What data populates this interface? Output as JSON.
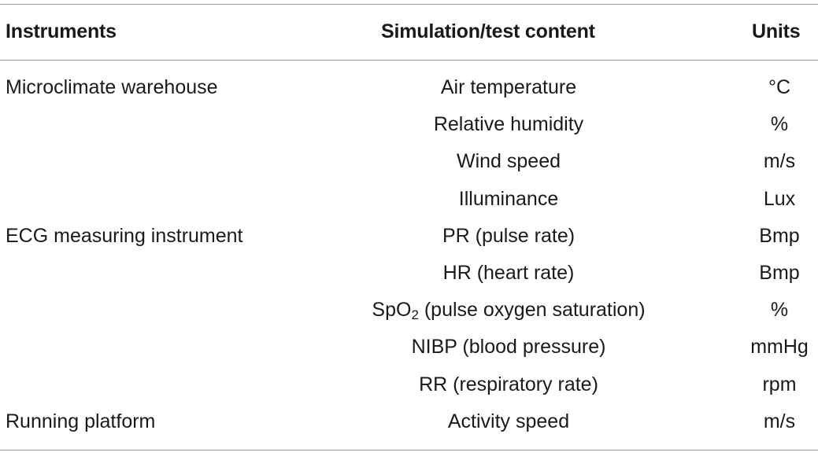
{
  "table": {
    "headers": {
      "instruments": "Instruments",
      "content": "Simulation/test content",
      "units": "Units"
    },
    "rows": [
      {
        "instrument": "Microclimate warehouse",
        "content": "Air temperature",
        "unit": "°C"
      },
      {
        "instrument": "",
        "content": "Relative humidity",
        "unit": "%"
      },
      {
        "instrument": "",
        "content": "Wind speed",
        "unit": "m/s"
      },
      {
        "instrument": "",
        "content": "Illuminance",
        "unit": "Lux"
      },
      {
        "instrument": "ECG measuring instrument",
        "content": "PR (pulse rate)",
        "unit": "Bmp"
      },
      {
        "instrument": "",
        "content": "HR (heart rate)",
        "unit": "Bmp"
      },
      {
        "instrument": "",
        "content_prefix": "SpO",
        "content_sub": "2",
        "content_suffix": " (pulse oxygen saturation)",
        "unit": "%"
      },
      {
        "instrument": "",
        "content": "NIBP (blood pressure)",
        "unit": "mmHg"
      },
      {
        "instrument": "",
        "content": "RR (respiratory rate)",
        "unit": "rpm"
      },
      {
        "instrument": "Running platform",
        "content": "Activity speed",
        "unit": "m/s"
      }
    ]
  }
}
